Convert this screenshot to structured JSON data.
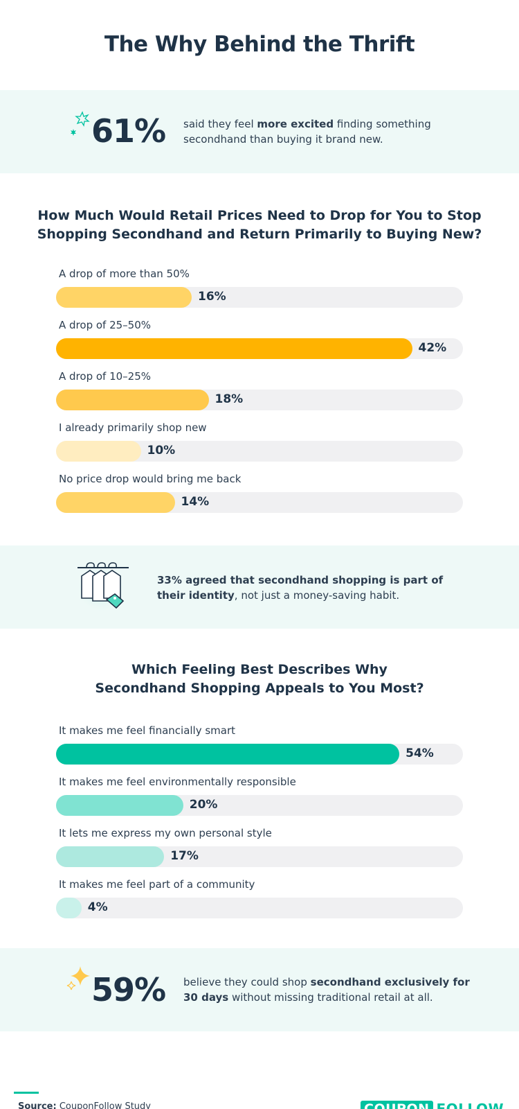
{
  "title": "The Why Behind the Thrift",
  "stat1": {
    "value": "61%",
    "text_pre": "said they feel ",
    "text_bold": "more excited",
    "text_post": " finding something secondhand than buying it brand new."
  },
  "stat2": {
    "text_pre": "33% agreed that ",
    "text_bold1": "secondhand shopping is part of their identity",
    "text_post": ", not just a money-saving habit."
  },
  "stat3": {
    "value": "59%",
    "text_pre": "believe they could shop ",
    "text_bold": "secondhand exclusively for 30 days",
    "text_post": " without missing traditional retail at all."
  },
  "source": {
    "label": "Source:",
    "value": "CouponFollow Study"
  },
  "logo": {
    "box": "COUPON",
    "text": "FOLLOW"
  },
  "colors": {
    "q1": [
      "#ffd466",
      "#ffb300",
      "#ffc94d",
      "#ffedc0",
      "#ffd466"
    ],
    "q2": [
      "#00c2a0",
      "#80e3d2",
      "#ade9df",
      "#c9f1ea"
    ],
    "track": "#f0f0f2",
    "band": "#eef9f7"
  },
  "chart_data": [
    {
      "type": "bar",
      "orientation": "horizontal",
      "title": "How Much Would Retail Prices Need to Drop for You to Stop Shopping Secondhand and Return Primarily to Buying New?",
      "categories": [
        "A drop of more than 50%",
        "A drop of 25–50%",
        "A drop of 10–25%",
        "I already primarily shop new",
        "No price drop would bring me back"
      ],
      "values": [
        16,
        42,
        18,
        10,
        14
      ],
      "labels": [
        "16%",
        "42%",
        "18%",
        "10%",
        "14%"
      ],
      "xlim": [
        0,
        48
      ]
    },
    {
      "type": "bar",
      "orientation": "horizontal",
      "title": "Which Feeling Best Describes Why Secondhand Shopping Appeals to You Most?",
      "categories": [
        "It makes me feel financially smart",
        "It makes me feel environmentally responsible",
        "It lets me express my own personal style",
        "It makes me feel part of a community"
      ],
      "values": [
        54,
        20,
        17,
        4
      ],
      "labels": [
        "54%",
        "20%",
        "17%",
        "4%"
      ],
      "xlim": [
        0,
        64
      ]
    }
  ]
}
